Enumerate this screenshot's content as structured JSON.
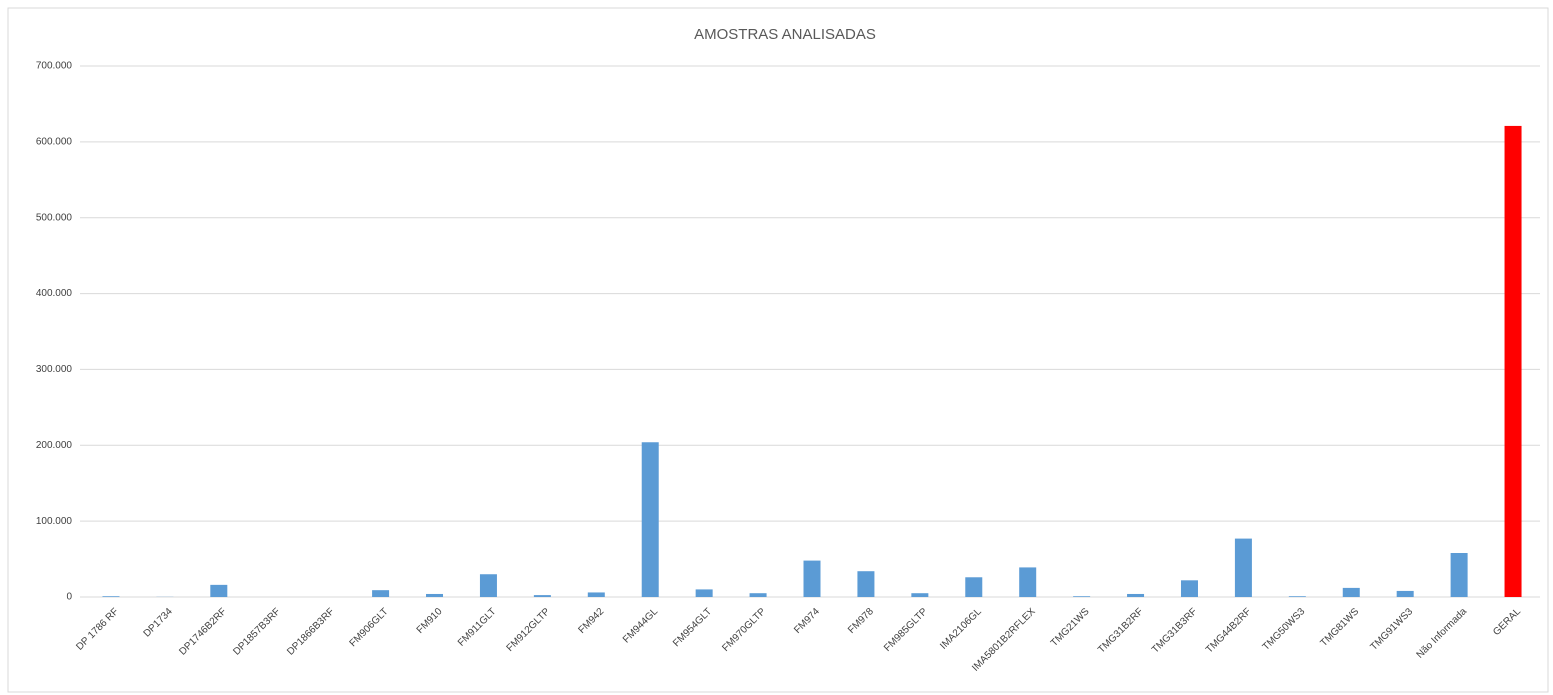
{
  "chart_data": {
    "type": "bar",
    "title": "AMOSTRAS ANALISADAS",
    "categories": [
      "DP 1786 RF",
      "DP1734",
      "DP1746B2RF",
      "DP1857B3RF",
      "DP1866B3RF",
      "FM906GLT",
      "FM910",
      "FM911GLT",
      "FM912GLTP",
      "FM942",
      "FM944GL",
      "FM954GLT",
      "FM970GLTP",
      "FM974",
      "FM978",
      "FM985GLTP",
      "IMA2106GL",
      "IMA5801B2RFLEX",
      "TMG21WS",
      "TMG31B2RF",
      "TMG31B3RF",
      "TMG44B2RF",
      "TMG50WS3",
      "TMG81WS",
      "TMG91WS3",
      "Não Informada",
      "GERAL"
    ],
    "values": [
      1000,
      200,
      16000,
      0,
      0,
      9000,
      4000,
      30000,
      2500,
      6000,
      204000,
      10000,
      5000,
      48000,
      34000,
      5000,
      26000,
      39000,
      1000,
      4000,
      22000,
      77000,
      1000,
      12000,
      8000,
      58000,
      621000
    ],
    "colors": [
      "#5b9bd5",
      "#5b9bd5",
      "#5b9bd5",
      "#5b9bd5",
      "#5b9bd5",
      "#5b9bd5",
      "#5b9bd5",
      "#5b9bd5",
      "#5b9bd5",
      "#5b9bd5",
      "#5b9bd5",
      "#5b9bd5",
      "#5b9bd5",
      "#5b9bd5",
      "#5b9bd5",
      "#5b9bd5",
      "#5b9bd5",
      "#5b9bd5",
      "#5b9bd5",
      "#5b9bd5",
      "#5b9bd5",
      "#5b9bd5",
      "#5b9bd5",
      "#5b9bd5",
      "#5b9bd5",
      "#5b9bd5",
      "#ff0000"
    ],
    "ylim": [
      0,
      700000
    ],
    "yticks": [
      {
        "value": 0,
        "label": "0"
      },
      {
        "value": 100000,
        "label": "100.000"
      },
      {
        "value": 200000,
        "label": "200.000"
      },
      {
        "value": 300000,
        "label": "300.000"
      },
      {
        "value": 400000,
        "label": "400.000"
      },
      {
        "value": 500000,
        "label": "500.000"
      },
      {
        "value": 600000,
        "label": "600.000"
      },
      {
        "value": 700000,
        "label": "700.000"
      }
    ],
    "grid": true
  }
}
